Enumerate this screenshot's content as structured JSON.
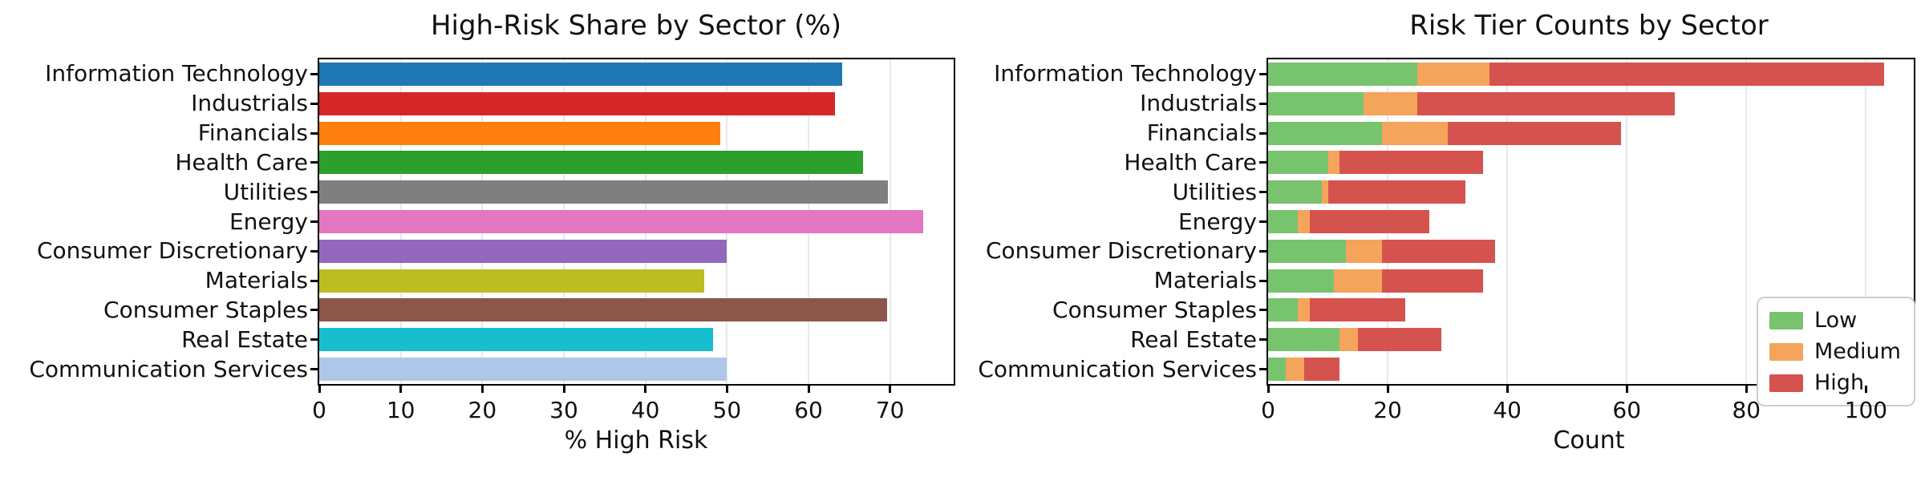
{
  "figure": {
    "background": "#ffffff"
  },
  "chart_data": [
    {
      "type": "bar",
      "orientation": "horizontal",
      "title": "High-Risk Share by Sector (%)",
      "xlabel": "% High Risk",
      "categories": [
        "Information Technology",
        "Industrials",
        "Financials",
        "Health Care",
        "Utilities",
        "Energy",
        "Consumer Discretionary",
        "Materials",
        "Consumer Staples",
        "Real Estate",
        "Communication Services"
      ],
      "values": [
        64.1,
        63.2,
        49.2,
        66.7,
        69.7,
        74.1,
        50.0,
        47.2,
        69.6,
        48.3,
        50.0
      ],
      "bar_colors": [
        "#1f77b4",
        "#d62728",
        "#ff7f0e",
        "#2ca02c",
        "#7f7f7f",
        "#e377c2",
        "#9467bd",
        "#bcbd22",
        "#8c564b",
        "#17becf",
        "#aec7e8"
      ],
      "xlim": [
        0,
        77.8
      ],
      "xticks": [
        0,
        10,
        20,
        30,
        40,
        50,
        60,
        70
      ],
      "grid": "vertical-light",
      "legend": null
    },
    {
      "type": "bar",
      "orientation": "horizontal",
      "stacked": true,
      "title": "Risk Tier Counts by Sector",
      "xlabel": "Count",
      "categories": [
        "Information Technology",
        "Industrials",
        "Financials",
        "Health Care",
        "Utilities",
        "Energy",
        "Consumer Discretionary",
        "Materials",
        "Consumer Staples",
        "Real Estate",
        "Communication Services"
      ],
      "series": [
        {
          "name": "Low",
          "color": "#77c36e",
          "values": [
            25,
            16,
            19,
            10,
            9,
            5,
            13,
            11,
            5,
            12,
            3
          ]
        },
        {
          "name": "Medium",
          "color": "#f5a45c",
          "values": [
            12,
            9,
            11,
            2,
            1,
            2,
            6,
            8,
            2,
            3,
            3
          ]
        },
        {
          "name": "High",
          "color": "#d5534e",
          "values": [
            66,
            43,
            29,
            24,
            23,
            20,
            19,
            17,
            16,
            14,
            6
          ]
        }
      ],
      "totals": [
        103,
        68,
        59,
        36,
        33,
        27,
        38,
        36,
        23,
        29,
        12
      ],
      "xlim": [
        0,
        108
      ],
      "xticks": [
        0,
        20,
        40,
        60,
        80,
        100
      ],
      "grid": "vertical-light",
      "legend": {
        "position": "lower right",
        "labels": [
          "Low",
          "Medium",
          "High"
        ]
      }
    }
  ]
}
